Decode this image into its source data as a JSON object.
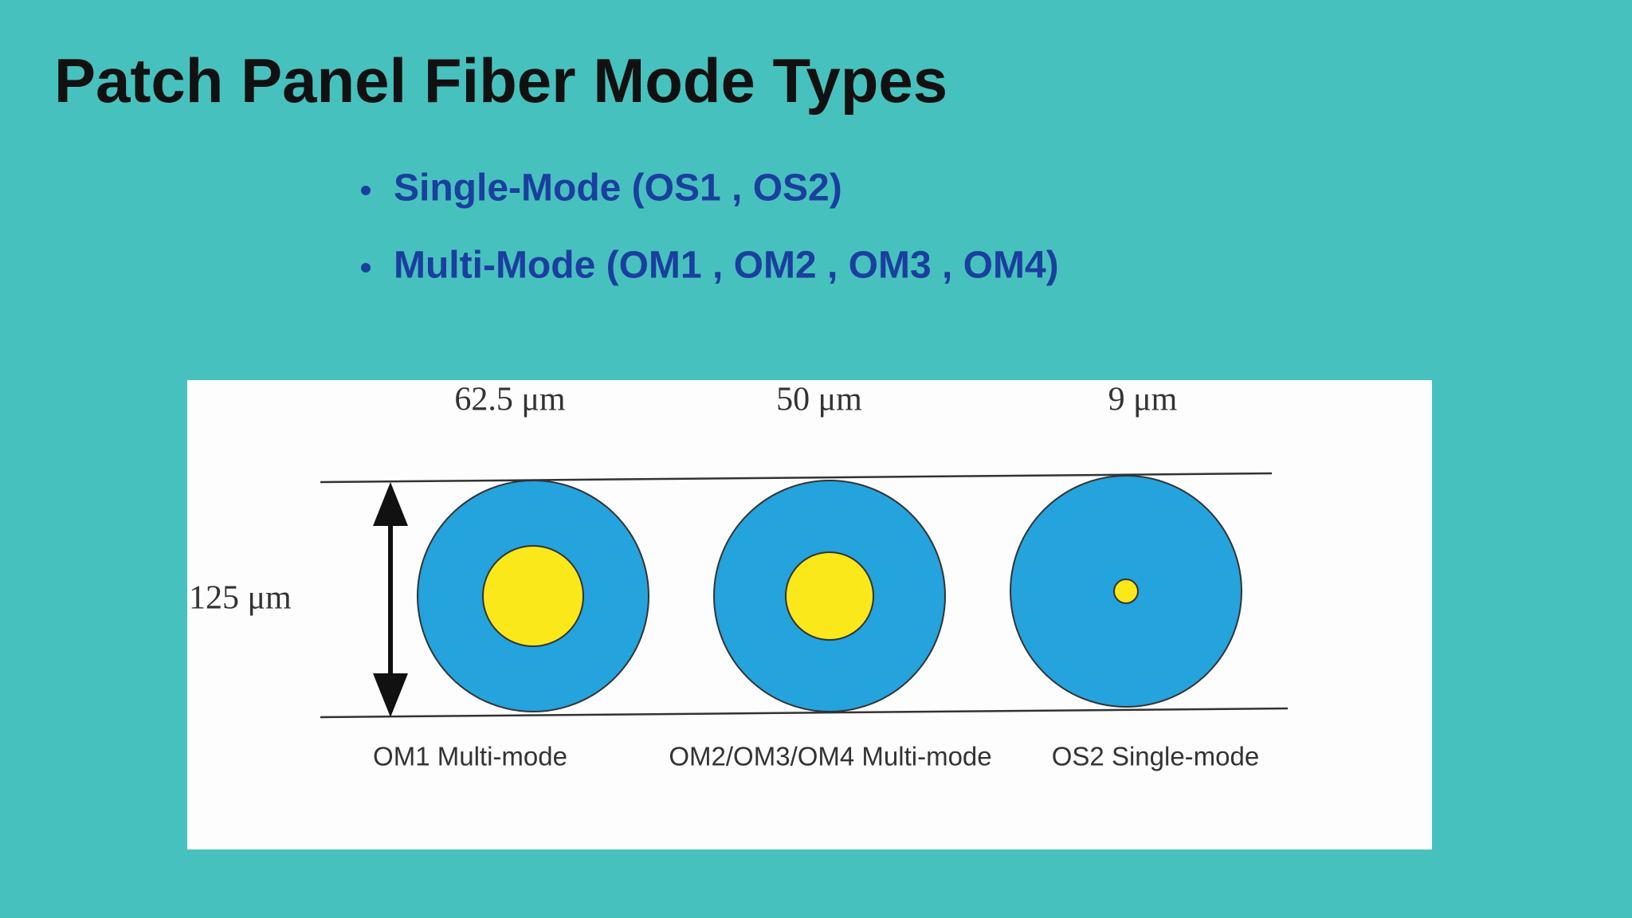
{
  "header": {
    "title": "Patch Panel Fiber Mode Types"
  },
  "bullets": [
    "Single-Mode (OS1 , OS2)",
    "Multi-Mode (OM1 , OM2 , OM3 , OM4)"
  ],
  "diagram": {
    "cladding_label": "125 μm",
    "fibers": [
      {
        "core_label": "62.5 μm",
        "name": "OM1 Multi-mode"
      },
      {
        "core_label": "50 μm",
        "name": "OM2/OM3/OM4 Multi-mode"
      },
      {
        "core_label": "9 μm",
        "name": "OS2  Single-mode"
      }
    ]
  }
}
